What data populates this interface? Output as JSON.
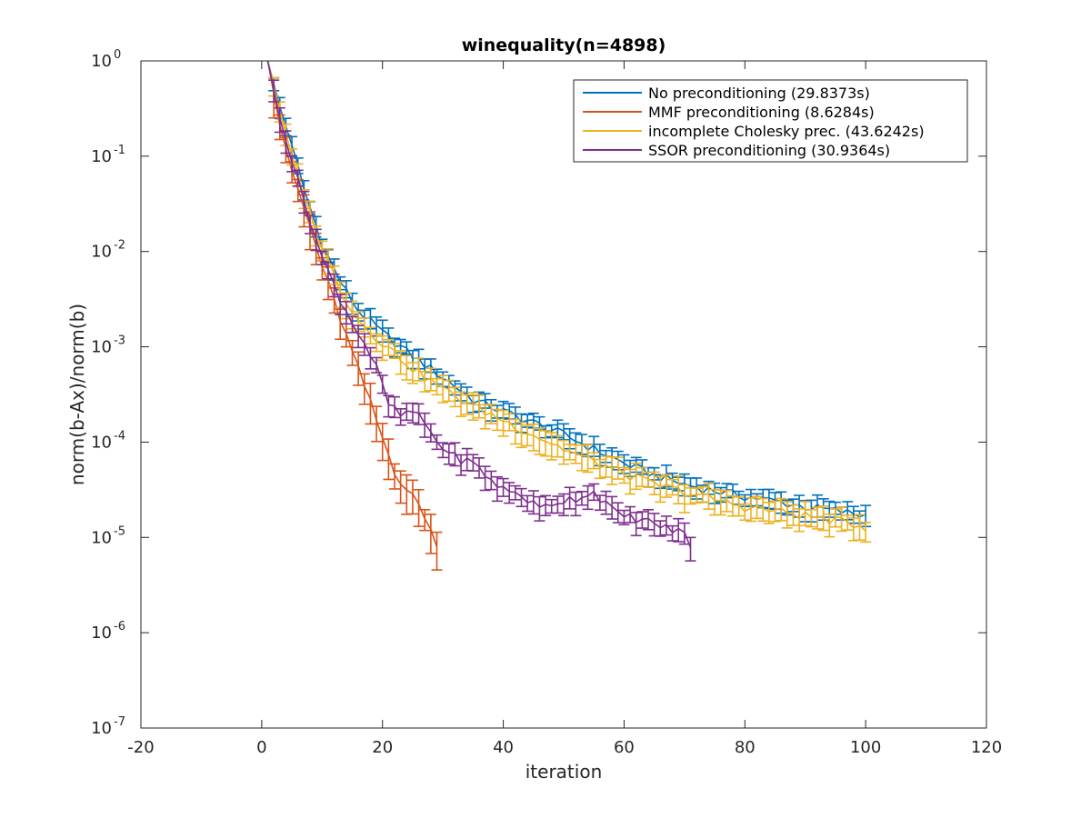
{
  "chart_data": {
    "type": "line",
    "title": "winequality(n=4898)",
    "xlabel": "iteration",
    "ylabel": "norm(b-Ax)/norm(b)",
    "xlim": [
      -20,
      120
    ],
    "ylim": [
      1e-07,
      1
    ],
    "yscale": "log",
    "grid": false,
    "legend_position": "top-right",
    "x_ticks": [
      -20,
      0,
      20,
      40,
      60,
      80,
      100,
      120
    ],
    "x_tick_labels": [
      "-20",
      "0",
      "20",
      "40",
      "60",
      "80",
      "100",
      "120"
    ],
    "y_ticks": [
      1,
      0.1,
      0.01,
      0.001,
      0.0001,
      1e-05,
      1e-06,
      1e-07
    ],
    "y_tick_bases": [
      "10",
      "10",
      "10",
      "10",
      "10",
      "10",
      "10",
      "10"
    ],
    "y_tick_exponents": [
      "0",
      "-1",
      "-2",
      "-3",
      "-4",
      "-5",
      "-6",
      "-7"
    ],
    "series": [
      {
        "name": "No preconditioning (29.8373s)",
        "color": "#0072BD",
        "keypoints": [
          [
            1,
            1.0
          ],
          [
            3,
            0.33
          ],
          [
            5,
            0.13
          ],
          [
            7,
            0.045
          ],
          [
            10,
            0.012
          ],
          [
            13,
            0.0048
          ],
          [
            16,
            0.0024
          ],
          [
            20,
            0.0014
          ],
          [
            25,
            0.0008
          ],
          [
            30,
            0.00048
          ],
          [
            35,
            0.00028
          ],
          [
            40,
            0.00021
          ],
          [
            45,
            0.00016
          ],
          [
            50,
            0.00012
          ],
          [
            55,
            8.5e-05
          ],
          [
            60,
            6e-05
          ],
          [
            65,
            4.5e-05
          ],
          [
            70,
            3.6e-05
          ],
          [
            75,
            3.1e-05
          ],
          [
            80,
            2.7e-05
          ],
          [
            85,
            2.4e-05
          ],
          [
            90,
            2.1e-05
          ],
          [
            95,
            1.9e-05
          ],
          [
            100,
            1.7e-05
          ]
        ],
        "error_frac": 0.2
      },
      {
        "name": "MMF preconditioning (8.6284s)",
        "color": "#D95319",
        "keypoints": [
          [
            1,
            1.0
          ],
          [
            3,
            0.21
          ],
          [
            5,
            0.07
          ],
          [
            8,
            0.018
          ],
          [
            10,
            0.007
          ],
          [
            12,
            0.003
          ],
          [
            14,
            0.0013
          ],
          [
            16,
            0.00058
          ],
          [
            18,
            0.00026
          ],
          [
            20,
            0.00011
          ],
          [
            22,
            5e-05
          ],
          [
            24,
            3.2e-05
          ],
          [
            26,
            2.2e-05
          ],
          [
            27,
            1.7e-05
          ],
          [
            28,
            1.2e-05
          ],
          [
            29,
            7.5e-06
          ]
        ],
        "error_frac": 0.35
      },
      {
        "name": "incomplete Cholesky prec. (43.6242s)",
        "color": "#EDB120",
        "keypoints": [
          [
            1,
            1.0
          ],
          [
            3,
            0.3
          ],
          [
            5,
            0.1
          ],
          [
            8,
            0.025
          ],
          [
            10,
            0.011
          ],
          [
            13,
            0.004
          ],
          [
            16,
            0.0019
          ],
          [
            20,
            0.0011
          ],
          [
            25,
            0.0006
          ],
          [
            30,
            0.00036
          ],
          [
            35,
            0.00024
          ],
          [
            40,
            0.00017
          ],
          [
            45,
            0.00012
          ],
          [
            50,
            8.5e-05
          ],
          [
            55,
            6.2e-05
          ],
          [
            60,
            4.7e-05
          ],
          [
            65,
            3.6e-05
          ],
          [
            70,
            3e-05
          ],
          [
            75,
            2.5e-05
          ],
          [
            80,
            2.1e-05
          ],
          [
            85,
            1.9e-05
          ],
          [
            90,
            1.7e-05
          ],
          [
            95,
            1.5e-05
          ],
          [
            100,
            1.3e-05
          ]
        ],
        "error_frac": 0.25
      },
      {
        "name": "SSOR preconditioning (30.9364s)",
        "color": "#7E2F8E",
        "keypoints": [
          [
            1,
            1.0
          ],
          [
            3,
            0.25
          ],
          [
            5,
            0.085
          ],
          [
            8,
            0.022
          ],
          [
            10,
            0.0085
          ],
          [
            13,
            0.0032
          ],
          [
            15,
            0.0018
          ],
          [
            17,
            0.0011
          ],
          [
            19,
            0.0006
          ],
          [
            21,
            0.00025
          ],
          [
            23,
            0.00019
          ],
          [
            25,
            0.00021
          ],
          [
            27,
            0.00016
          ],
          [
            29,
            0.0001
          ],
          [
            32,
            7e-05
          ],
          [
            35,
            6e-05
          ],
          [
            38,
            4e-05
          ],
          [
            40,
            3.2e-05
          ],
          [
            43,
            2.8e-05
          ],
          [
            46,
            2e-05
          ],
          [
            49,
            2.4e-05
          ],
          [
            52,
            2.6e-05
          ],
          [
            55,
            3e-05
          ],
          [
            57,
            2.3e-05
          ],
          [
            59,
            1.7e-05
          ],
          [
            62,
            1.6e-05
          ],
          [
            65,
            1.4e-05
          ],
          [
            68,
            1.2e-05
          ],
          [
            70,
            1.1e-05
          ],
          [
            71,
            8.5e-06
          ]
        ],
        "error_frac": 0.22
      }
    ]
  }
}
